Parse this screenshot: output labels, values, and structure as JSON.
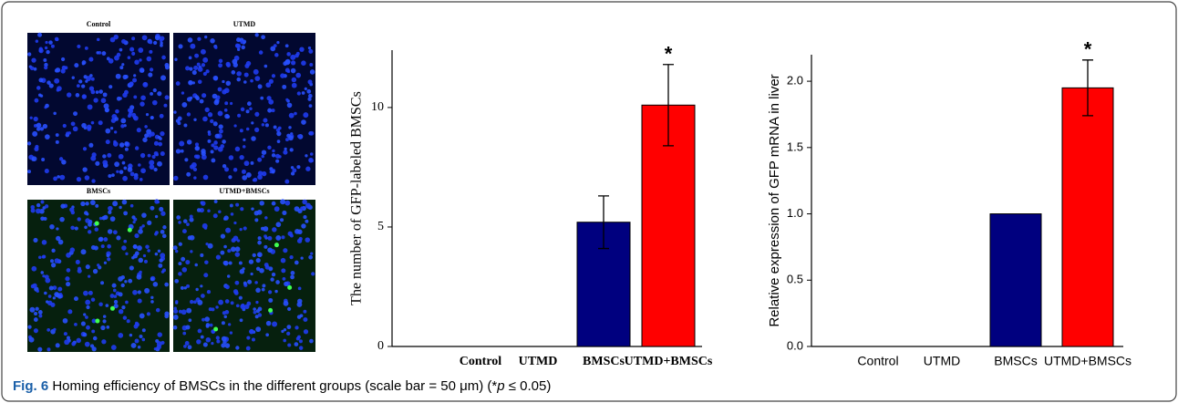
{
  "panels": [
    "Control",
    "UTMD",
    "BMSCs",
    "UTMD+BMSCs"
  ],
  "chart_data": [
    {
      "type": "bar",
      "ylabel": "The number of GFP-labeled BMSCs",
      "categories": [
        "Control",
        "UTMD",
        "BMSCs",
        "UTMD+BMSCs"
      ],
      "values": [
        0,
        0,
        5.2,
        10.1
      ],
      "errors": [
        null,
        null,
        1.1,
        1.7
      ],
      "colors": [
        "#00007f",
        "#00007f",
        "#00007f",
        "#ff0000"
      ],
      "ylim": [
        0,
        12.4
      ],
      "yticks": [
        0,
        5,
        10
      ],
      "annotation": "*"
    },
    {
      "type": "bar",
      "ylabel": "Relative expression of GFP mRNA in liver",
      "categories": [
        "Control",
        "UTMD",
        "BMSCs",
        "UTMD+BMSCs"
      ],
      "values": [
        0,
        0,
        1.0,
        1.95
      ],
      "errors": [
        null,
        null,
        null,
        0.21
      ],
      "colors": [
        "#00007f",
        "#00007f",
        "#00007f",
        "#ff0000"
      ],
      "ylim": [
        0,
        2.2
      ],
      "yticks": [
        {
          "value": 0,
          "label": "0.0"
        },
        0.5,
        {
          "value": 1,
          "label": "1.0"
        },
        1.5,
        {
          "value": 2,
          "label": "2.0"
        }
      ],
      "annotation": "*"
    }
  ],
  "caption": {
    "label": "Fig. 6",
    "text": "Homing efficiency of BMSCs in the different groups (scale bar = 50 μm) (*",
    "italic": "p",
    "end": " ≤ 0.05)"
  }
}
